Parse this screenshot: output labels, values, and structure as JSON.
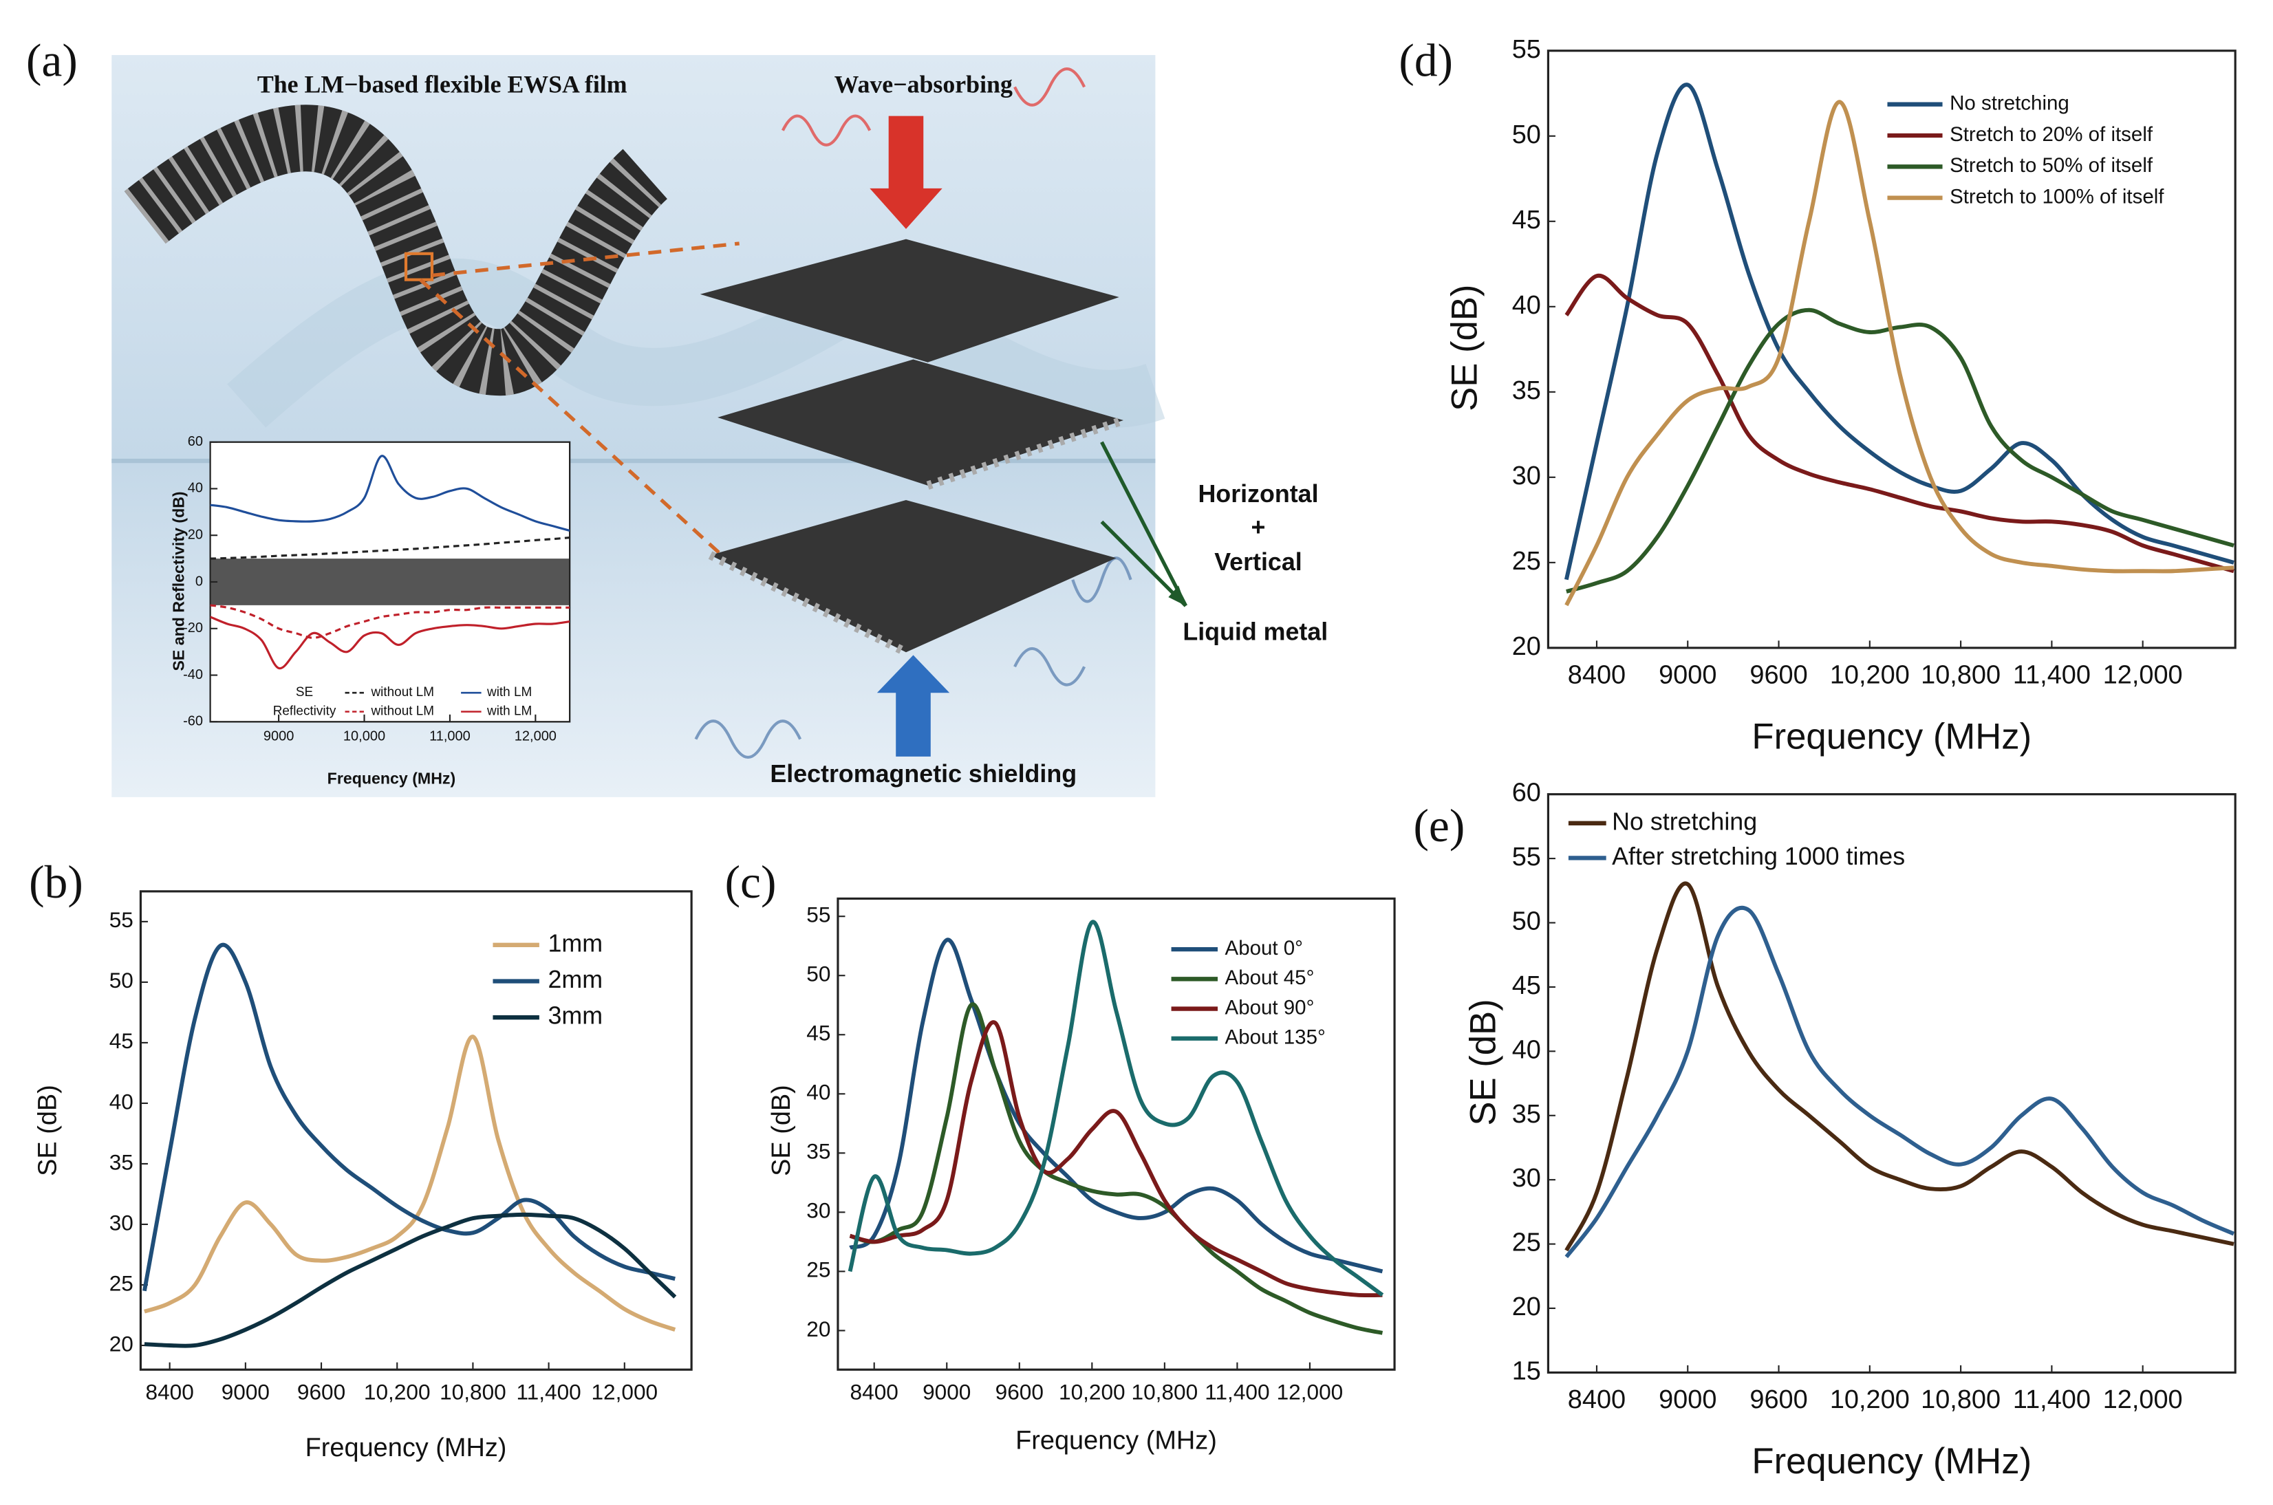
{
  "figure": {
    "panel_a": {
      "label": "(a)",
      "film_title": "The LM−based flexible EWSA film",
      "wave_title": "Wave−absorbing",
      "structure_line1": "Horizontal",
      "structure_line2": "+",
      "structure_line3": "Vertical",
      "material": "Liquid metal",
      "shielding": "Electromagnetic shielding"
    }
  },
  "chart_data": [
    {
      "type": "line",
      "x_label": "Frequency (MHz)",
      "y_label": "SE and Reflectivity (dB)",
      "x": [
        8200,
        8400,
        8600,
        8800,
        9000,
        9200,
        9400,
        9600,
        9800,
        10000,
        10200,
        10400,
        10600,
        10800,
        11000,
        11200,
        11400,
        11600,
        11800,
        12000,
        12200,
        12400
      ],
      "xlim": [
        8200,
        12400
      ],
      "xticks": [
        9000,
        {
          "value": 10000,
          "label": "10,000"
        },
        {
          "value": 11000,
          "label": "11,000"
        },
        {
          "value": 12000,
          "label": "12,000"
        }
      ],
      "ylim": [
        -60,
        60
      ],
      "yticks": [
        -60,
        -40,
        -20,
        0,
        20,
        40,
        60
      ],
      "shaded_band": [
        -10,
        10
      ],
      "series_groups": [
        {
          "name": "SE",
          "color": "#1f4e9a",
          "series": [
            {
              "name": "without LM",
              "color": "#222222",
              "dashed": true,
              "values": [
                10,
                10.2,
                10.5,
                10.8,
                11.2,
                11.5,
                11.8,
                12.2,
                12.6,
                13,
                13.4,
                13.8,
                14.2,
                14.7,
                15.2,
                15.7,
                16.2,
                16.8,
                17.3,
                17.9,
                18.4,
                19
              ]
            },
            {
              "name": "with LM",
              "color": "#1f4e9a",
              "dashed": false,
              "values": [
                33,
                32,
                30,
                28,
                26.5,
                26,
                26,
                27,
                30,
                36,
                54,
                42,
                36,
                36.5,
                39,
                40,
                36,
                32,
                29,
                26,
                24,
                22
              ]
            }
          ]
        },
        {
          "name": "Reflectivity",
          "color": "#c0202a",
          "series": [
            {
              "name": "without LM",
              "color": "#c0202a",
              "dashed": true,
              "values": [
                -10,
                -11,
                -13,
                -16,
                -20,
                -22,
                -24,
                -22,
                -19,
                -17,
                -15,
                -14,
                -13,
                -13,
                -12,
                -12,
                -11,
                -11,
                -11,
                -11,
                -11,
                -11
              ]
            },
            {
              "name": "with LM",
              "color": "#c0202a",
              "dashed": false,
              "values": [
                -15,
                -18,
                -20,
                -25,
                -37,
                -30,
                -22,
                -26,
                -30,
                -23,
                -22,
                -27,
                -22,
                -20,
                -19,
                -18.5,
                -19,
                -20,
                -19,
                -18,
                -18,
                -17
              ]
            }
          ]
        }
      ]
    },
    {
      "type": "line",
      "label": "(b)",
      "x_label": "Frequency (MHz)",
      "y_label": "SE (dB)",
      "x": [
        8200,
        8400,
        8600,
        8800,
        9000,
        9200,
        9400,
        9600,
        9800,
        10000,
        10200,
        10400,
        10600,
        10800,
        11000,
        11200,
        11400,
        11600,
        11800,
        12000,
        12200,
        12400
      ],
      "xlim": [
        8170,
        12530
      ],
      "xticks": [
        8400,
        9000,
        9600,
        {
          "value": 10200,
          "label": "10,200"
        },
        {
          "value": 10800,
          "label": "10,800"
        },
        {
          "value": 11400,
          "label": "11,400"
        },
        {
          "value": 12000,
          "label": "12,000"
        }
      ],
      "ylim": [
        18,
        57.5
      ],
      "yticks": [
        20,
        25,
        30,
        35,
        40,
        45,
        50,
        55
      ],
      "series": [
        {
          "name": "1mm",
          "color": "#d4aa72",
          "values": [
            22.8,
            23.5,
            25,
            29,
            31.8,
            30,
            27.5,
            27,
            27.3,
            28,
            29,
            31.5,
            38,
            45.5,
            37,
            31,
            28,
            26,
            24.5,
            23,
            22,
            21.3
          ]
        },
        {
          "name": "2mm",
          "color": "#1f4e79",
          "values": [
            24.5,
            36,
            47,
            53,
            50,
            43,
            39,
            36.5,
            34.5,
            33,
            31.5,
            30.3,
            29.5,
            29.3,
            30.5,
            32,
            31.2,
            29,
            27.5,
            26.5,
            26,
            25.5
          ]
        },
        {
          "name": "3mm",
          "color": "#0d3040",
          "values": [
            20.1,
            20,
            20,
            20.5,
            21.3,
            22.3,
            23.5,
            24.8,
            26,
            27,
            28,
            29,
            29.8,
            30.5,
            30.7,
            30.8,
            30.7,
            30.5,
            29.5,
            28,
            26,
            24
          ]
        }
      ]
    },
    {
      "type": "line",
      "label": "(c)",
      "x_label": "Frequency (MHz)",
      "y_label": "SE (dB)",
      "x": [
        8200,
        8400,
        8600,
        8800,
        9000,
        9200,
        9400,
        9600,
        9800,
        10000,
        10200,
        10400,
        10600,
        10800,
        11000,
        11200,
        11400,
        11600,
        11800,
        12000,
        12200,
        12400,
        12600
      ],
      "xlim": [
        8100,
        12700
      ],
      "xticks": [
        8400,
        9000,
        9600,
        {
          "value": 10200,
          "label": "10,200"
        },
        {
          "value": 10800,
          "label": "10,800"
        },
        {
          "value": 11400,
          "label": "11,400"
        },
        {
          "value": 12000,
          "label": "12,000"
        }
      ],
      "ylim": [
        16.7,
        56.5
      ],
      "yticks": [
        20,
        25,
        30,
        35,
        40,
        45,
        50,
        55
      ],
      "series": [
        {
          "name": "About 0°",
          "color": "#1f4e79",
          "values": [
            27,
            28,
            34,
            46,
            53,
            48,
            42,
            37.5,
            35,
            33,
            31,
            30,
            29.5,
            30,
            31.5,
            32,
            31,
            29,
            27.5,
            26.5,
            26,
            25.5,
            25
          ]
        },
        {
          "name": "About 45°",
          "color": "#2d5a27",
          "values": [
            28,
            27.5,
            28.5,
            30,
            38,
            47.5,
            42,
            36,
            33.5,
            32.5,
            31.8,
            31.5,
            31.5,
            30.5,
            28.5,
            26.5,
            25,
            23.5,
            22.5,
            21.5,
            20.8,
            20.2,
            19.8
          ]
        },
        {
          "name": "About 90°",
          "color": "#7a1a1a",
          "values": [
            28,
            27.5,
            28,
            28.5,
            31,
            41,
            46,
            38,
            33.5,
            34.5,
            37,
            38.5,
            35,
            31,
            28.5,
            27,
            26,
            25,
            24,
            23.5,
            23.2,
            23,
            23
          ]
        },
        {
          "name": "About 135°",
          "color": "#1a6b6b",
          "values": [
            25,
            33,
            28,
            27,
            26.8,
            26.5,
            27,
            29,
            34,
            44,
            54.5,
            47,
            39.5,
            37.5,
            38,
            41.5,
            41,
            36,
            31,
            28,
            26,
            24.5,
            23
          ]
        }
      ]
    },
    {
      "type": "line",
      "label": "(d)",
      "x_label": "Frequency (MHz)",
      "y_label": "SE (dB)",
      "x": [
        8200,
        8400,
        8600,
        8800,
        9000,
        9200,
        9400,
        9600,
        9800,
        10000,
        10200,
        10400,
        10600,
        10800,
        11000,
        11200,
        11400,
        11600,
        11800,
        12000,
        12200,
        12400,
        12600
      ],
      "xlim": [
        8080,
        12610
      ],
      "xticks": [
        8400,
        9000,
        9600,
        {
          "value": 10200,
          "label": "10,200"
        },
        {
          "value": 10800,
          "label": "10,800"
        },
        {
          "value": 11400,
          "label": "11,400"
        },
        {
          "value": 12000,
          "label": "12,000"
        }
      ],
      "ylim": [
        20,
        55
      ],
      "yticks": [
        20,
        25,
        30,
        35,
        40,
        45,
        50,
        55
      ],
      "series": [
        {
          "name": "No stretching",
          "color": "#1f4e79",
          "values": [
            24,
            32,
            40,
            49,
            53,
            48,
            42,
            37.5,
            35,
            33,
            31.5,
            30.3,
            29.5,
            29.2,
            30.5,
            32,
            31,
            29,
            27.5,
            26.5,
            26,
            25.5,
            25
          ]
        },
        {
          "name": "Stretch to 20% of itself",
          "color": "#7a1a1a",
          "values": [
            39.5,
            41.8,
            40.5,
            39.5,
            39,
            36,
            32.5,
            31,
            30.2,
            29.7,
            29.3,
            28.8,
            28.3,
            28,
            27.6,
            27.4,
            27.4,
            27.2,
            26.8,
            26,
            25.5,
            25,
            24.5
          ]
        },
        {
          "name": "Stretch to 50% of itself",
          "color": "#2d5a27",
          "values": [
            23.3,
            23.8,
            24.5,
            26.5,
            29.5,
            33,
            36.5,
            39,
            39.8,
            39,
            38.5,
            38.8,
            38.8,
            37,
            33,
            31,
            30,
            29,
            28,
            27.5,
            27,
            26.5,
            26
          ]
        },
        {
          "name": "Stretch to 100% of itself",
          "color": "#c09050",
          "values": [
            22.5,
            26,
            30,
            32.5,
            34.5,
            35.2,
            35.3,
            37,
            45,
            52,
            45,
            36,
            30,
            27,
            25.5,
            25,
            24.8,
            24.6,
            24.5,
            24.5,
            24.5,
            24.6,
            24.7
          ]
        }
      ]
    },
    {
      "type": "line",
      "label": "(e)",
      "x_label": "Frequency (MHz)",
      "y_label": "SE (dB)",
      "x": [
        8200,
        8400,
        8600,
        8800,
        9000,
        9200,
        9400,
        9600,
        9800,
        10000,
        10200,
        10400,
        10600,
        10800,
        11000,
        11200,
        11400,
        11600,
        11800,
        12000,
        12200,
        12400,
        12600
      ],
      "xlim": [
        8080,
        12610
      ],
      "xticks": [
        8400,
        9000,
        9600,
        {
          "value": 10200,
          "label": "10,200"
        },
        {
          "value": 10800,
          "label": "10,800"
        },
        {
          "value": 11400,
          "label": "11,400"
        },
        {
          "value": 12000,
          "label": "12,000"
        }
      ],
      "ylim": [
        15,
        60
      ],
      "yticks": [
        15,
        20,
        25,
        30,
        35,
        40,
        45,
        50,
        55,
        60
      ],
      "series": [
        {
          "name": "No stretching",
          "color": "#4a2a12",
          "values": [
            24.5,
            29,
            38,
            48,
            53,
            45,
            40,
            37,
            35,
            33,
            31,
            30,
            29.3,
            29.5,
            31,
            32.2,
            31,
            29,
            27.5,
            26.5,
            26,
            25.5,
            25
          ]
        },
        {
          "name": "After stretching 1000 times",
          "color": "#2e5f8f",
          "values": [
            24,
            27,
            31,
            35,
            40,
            49,
            51,
            46,
            40,
            37,
            35,
            33.5,
            32,
            31.2,
            32.5,
            35,
            36.3,
            34,
            31,
            29,
            28,
            26.8,
            25.8
          ]
        }
      ]
    }
  ]
}
